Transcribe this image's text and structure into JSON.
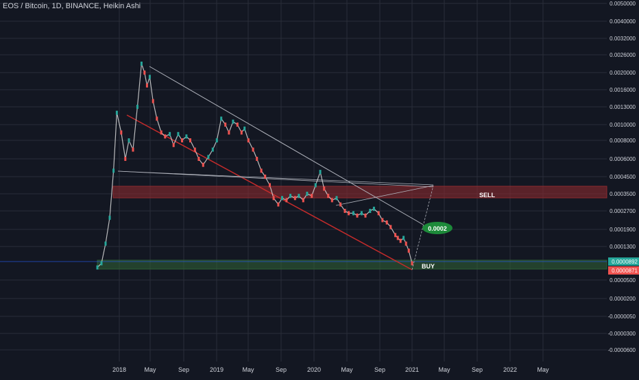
{
  "header": {
    "title": "EOS / Bitcoin, 1D, BINANCE, Heikin Ashi"
  },
  "colors": {
    "background": "#131722",
    "grid": "#2a2e39",
    "axis_text": "#d1d4dc",
    "sell_zone": "#8b2a2f",
    "buy_zone": "#2e5d35",
    "red_trendline": "#c42b2b",
    "grey_line": "#b2b5be",
    "price_up_label": "#26a69a",
    "price_down_label": "#ef5350",
    "target_badge": "#1d8a3a"
  },
  "chart_data": {
    "type": "candlestick-line",
    "title": "EOS / Bitcoin, 1D, BINANCE, Heikin Ashi",
    "x_ticks": [
      "2018",
      "May",
      "Sep",
      "2019",
      "May",
      "Sep",
      "2020",
      "May",
      "Sep",
      "2021",
      "May",
      "Sep",
      "2022",
      "May"
    ],
    "y_ticks": [
      "0.0050000",
      "0.0040000",
      "0.0032000",
      "0.0026000",
      "0.0020000",
      "0.0016000",
      "0.0013000",
      "0.0010000",
      "0.0008000",
      "0.0006000",
      "0.0004500",
      "0.0003500",
      "0.0002700",
      "0.0001900",
      "0.0001300",
      "0.0000500",
      "0.0000200",
      "-0.0000050",
      "-0.0000300",
      "-0.0000600"
    ],
    "price_labels": [
      {
        "value": "0.0000892",
        "direction": "up"
      },
      {
        "value": "0.0000871",
        "direction": "down"
      }
    ],
    "series": [
      {
        "dates": [
          "2017-11-10",
          "2017-11-25",
          "2017-12-10",
          "2017-12-25",
          "2018-01-08",
          "2018-01-20",
          "2018-02-05",
          "2018-02-20",
          "2018-03-05",
          "2018-03-20",
          "2018-04-05",
          "2018-04-20",
          "2018-05-01",
          "2018-05-10",
          "2018-05-20",
          "2018-06-01",
          "2018-06-15",
          "2018-07-01",
          "2018-07-15",
          "2018-08-01",
          "2018-08-15",
          "2018-09-01",
          "2018-09-15",
          "2018-10-01",
          "2018-10-15",
          "2018-11-01",
          "2018-11-15",
          "2018-12-01",
          "2018-12-20",
          "2019-01-05",
          "2019-01-20",
          "2019-02-05",
          "2019-02-20",
          "2019-03-05",
          "2019-03-20",
          "2019-04-05",
          "2019-04-20",
          "2019-05-01",
          "2019-05-15",
          "2019-06-01",
          "2019-06-15",
          "2019-07-01",
          "2019-07-15",
          "2019-08-01",
          "2019-08-15",
          "2019-09-01",
          "2019-09-15",
          "2019-10-01",
          "2019-10-15",
          "2019-11-01",
          "2019-11-15",
          "2019-12-01",
          "2019-12-15",
          "2020-01-01",
          "2020-01-15",
          "2020-02-01",
          "2020-02-15",
          "2020-03-01",
          "2020-03-15",
          "2020-04-01",
          "2020-04-15",
          "2020-05-01",
          "2020-05-15",
          "2020-06-01",
          "2020-06-15",
          "2020-07-01",
          "2020-07-15",
          "2020-08-01",
          "2020-08-15",
          "2020-09-01",
          "2020-09-15",
          "2020-10-01",
          "2020-10-15",
          "2020-11-01",
          "2020-11-10",
          "2020-11-20",
          "2020-12-01",
          "2020-12-10",
          "2020-12-20",
          "2021-01-01"
        ],
        "values": [
          8e-05,
          9e-05,
          0.00014,
          0.00024,
          0.0005,
          0.0012,
          0.0009,
          0.0006,
          0.0008,
          0.0007,
          0.0013,
          0.0023,
          0.002,
          0.0017,
          0.0019,
          0.0014,
          0.0011,
          0.0009,
          0.00085,
          0.00088,
          0.00075,
          0.00088,
          0.0008,
          0.00085,
          0.0008,
          0.0007,
          0.0006,
          0.00055,
          0.00062,
          0.0007,
          0.0008,
          0.0011,
          0.001,
          0.0009,
          0.00105,
          0.001,
          0.0009,
          0.00095,
          0.0008,
          0.0007,
          0.0006,
          0.0005,
          0.00045,
          0.0004,
          0.00033,
          0.0003,
          0.00033,
          0.00032,
          0.00034,
          0.00033,
          0.00034,
          0.00032,
          0.00035,
          0.00034,
          0.0004,
          0.00049,
          0.00038,
          0.00034,
          0.00032,
          0.00033,
          0.0003,
          0.00027,
          0.00026,
          0.00026,
          0.00025,
          0.00026,
          0.00025,
          0.00027,
          0.00028,
          0.00026,
          0.00023,
          0.00022,
          0.0002,
          0.00017,
          0.00016,
          0.00015,
          0.00016,
          0.00014,
          0.00012,
          9e-05
        ]
      }
    ],
    "zones": [
      {
        "label": "SELL",
        "from": 0.00034,
        "to": 0.000395
      },
      {
        "label": "BUY",
        "from": 8.5e-05,
        "to": 9.3e-05
      }
    ],
    "annotations": [
      {
        "text": "0.0002",
        "x": "2021-03-01",
        "y": 0.00019
      }
    ]
  }
}
